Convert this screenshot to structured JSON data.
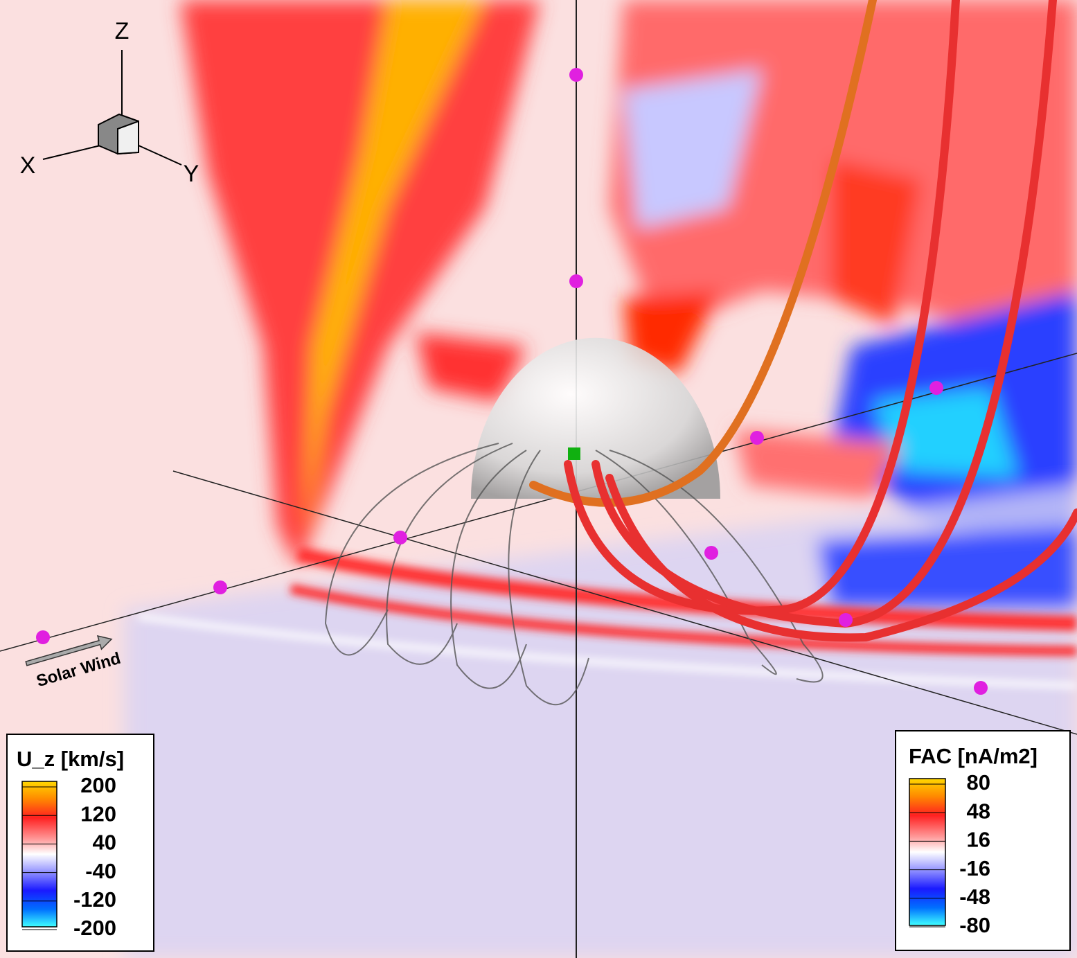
{
  "axes_triad": {
    "labels": [
      "X",
      "Y",
      "Z"
    ]
  },
  "annotation": "Solar Wind",
  "legends": [
    {
      "title": "U_z [km/s]",
      "ticks": [
        200,
        120,
        40,
        -40,
        -120,
        -200
      ]
    },
    {
      "title": "FAC [nA/m2]",
      "ticks": [
        80,
        48,
        16,
        -16,
        -48,
        -80
      ]
    }
  ]
}
